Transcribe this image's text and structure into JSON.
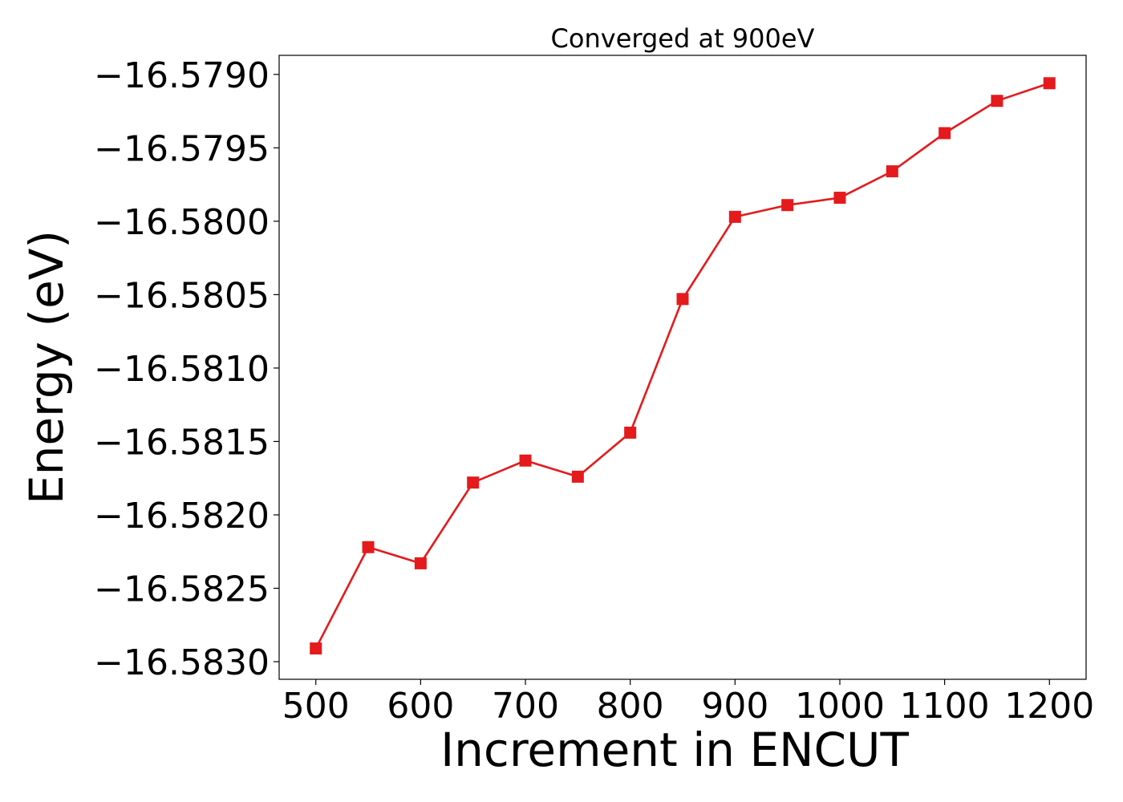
{
  "chart_data": {
    "type": "line",
    "title": "Converged at 900eV",
    "xlabel": "Increment in ENCUT",
    "ylabel": "Energy (eV)",
    "xlim": [
      465,
      1235
    ],
    "ylim": [
      -16.58312,
      -16.57887
    ],
    "xticks": [
      500,
      600,
      700,
      800,
      900,
      1000,
      1100,
      1200
    ],
    "yticks": [
      -16.583,
      -16.5825,
      -16.582,
      -16.5815,
      -16.581,
      -16.5805,
      -16.58,
      -16.5795,
      -16.579
    ],
    "xtick_labels": [
      "500",
      "600",
      "700",
      "800",
      "900",
      "1000",
      "1100",
      "1200"
    ],
    "ytick_labels": [
      "−16.5830",
      "−16.5825",
      "−16.5820",
      "−16.5815",
      "−16.5810",
      "−16.5805",
      "−16.5800",
      "−16.5795",
      "−16.5790"
    ],
    "grid": false,
    "series": [
      {
        "color": "#e41a1c",
        "marker": "square",
        "x": [
          500,
          550,
          600,
          650,
          700,
          750,
          800,
          850,
          900,
          950,
          1000,
          1050,
          1100,
          1150,
          1200
        ],
        "y": [
          -16.58291,
          -16.58222,
          -16.58233,
          -16.58178,
          -16.58163,
          -16.58174,
          -16.58144,
          -16.58053,
          -16.57997,
          -16.57989,
          -16.57984,
          -16.57966,
          -16.5794,
          -16.57918,
          -16.57906
        ]
      }
    ]
  }
}
